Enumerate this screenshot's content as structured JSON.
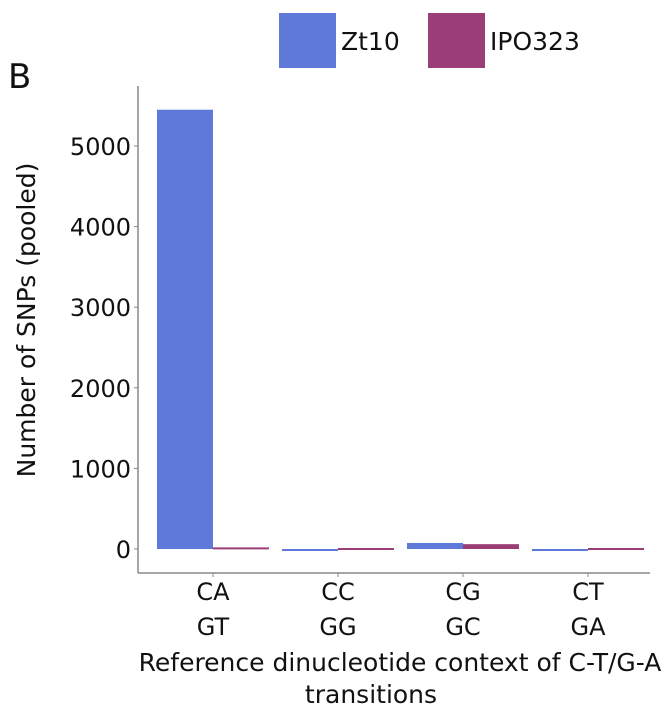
{
  "panel_label": "B",
  "chart_data": {
    "type": "bar",
    "categories": [
      [
        "CA",
        "GT"
      ],
      [
        "CC",
        "GG"
      ],
      [
        "CG",
        "GC"
      ],
      [
        "CT",
        "GA"
      ]
    ],
    "series": [
      {
        "name": "Zt10",
        "color": "#5f79d8",
        "values": [
          5450,
          -15,
          75,
          -15
        ]
      },
      {
        "name": "IPO323",
        "color": "#9b3d77",
        "values": [
          20,
          0,
          60,
          0
        ]
      }
    ],
    "xlabel": "Reference dinucleotide context of C-T/G-A transitions",
    "xlabel_lines": [
      "Reference dinucleotide context of C-T/G-A",
      "transitions"
    ],
    "ylabel": "Number of SNPs (pooled)",
    "yticks": [
      0,
      1000,
      2000,
      3000,
      4000,
      5000
    ],
    "ylim": [
      -300,
      5800
    ],
    "grid": false,
    "legend_position": "top"
  }
}
